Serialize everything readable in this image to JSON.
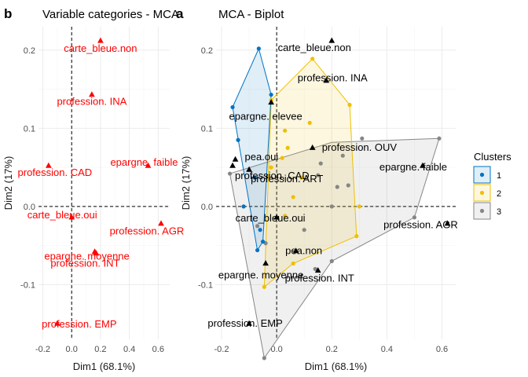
{
  "panel_tags": [
    "b",
    "a"
  ],
  "legend": {
    "title": "Clusters",
    "items": [
      {
        "label": "1",
        "color": "#0073c2"
      },
      {
        "label": "2",
        "color": "#efc000"
      },
      {
        "label": "3",
        "color": "#868686"
      }
    ]
  },
  "chart_data": [
    {
      "type": "scatter",
      "title": "Variable categories - MCA",
      "xlabel": "Dim1 (68.1%)",
      "ylabel": "Dim2 (17%)",
      "xlim": [
        -0.23,
        0.68
      ],
      "ylim": [
        -0.17,
        0.23
      ],
      "xticks": [
        -0.2,
        0.0,
        0.2,
        0.4,
        0.6
      ],
      "xtick_labels": [
        "-0.2",
        "0.0",
        "0.2",
        "0.4",
        "0.6"
      ],
      "yticks": [
        -0.1,
        0.0,
        0.1,
        0.2
      ],
      "ytick_labels": [
        "-0.1",
        "0.0",
        "0.1",
        "0.2"
      ],
      "grid": true,
      "marker": "triangle",
      "color": "#ff0000",
      "points": [
        {
          "label": "carte_bleue.non",
          "x": 0.2,
          "y": 0.212
        },
        {
          "label": "profession. INA",
          "x": 0.14,
          "y": 0.143
        },
        {
          "label": "epargne. faible",
          "x": 0.53,
          "y": 0.052
        },
        {
          "label": "profession. CAD",
          "x": -0.16,
          "y": 0.052
        },
        {
          "label": "carte_bleue.oui",
          "x": 0.0,
          "y": -0.014
        },
        {
          "label": "profession. AGR",
          "x": 0.62,
          "y": -0.022
        },
        {
          "label": "epargne. moyenne",
          "x": 0.16,
          "y": -0.058
        },
        {
          "label": "profession. INT",
          "x": 0.17,
          "y": -0.06
        },
        {
          "label": "profession. EMP",
          "x": -0.1,
          "y": -0.15
        }
      ]
    },
    {
      "type": "scatter",
      "title": "MCA - Biplot",
      "xlabel": "Dim1 (68.1%)",
      "ylabel": "Dim2 (17%)",
      "xlim": [
        -0.22,
        0.65
      ],
      "ylim": [
        -0.17,
        0.23
      ],
      "xticks": [
        -0.2,
        0.0,
        0.2,
        0.4,
        0.6
      ],
      "xtick_labels": [
        "-0.2",
        "0.0",
        "0.2",
        "0.4",
        "0.6"
      ],
      "yticks": [
        -0.1,
        0.0,
        0.1,
        0.2
      ],
      "ytick_labels": [
        "-0.1",
        "0.0",
        "0.1",
        "0.2"
      ],
      "grid": true,
      "legend_position": "right",
      "categories_points": [
        {
          "label": "carte_bleue.non",
          "x": 0.2,
          "y": 0.212
        },
        {
          "label": "profession. INA",
          "x": 0.18,
          "y": 0.161
        },
        {
          "label": "epargne. elevee",
          "x": -0.02,
          "y": 0.133
        },
        {
          "label": "pea.oui",
          "x": -0.15,
          "y": 0.06
        },
        {
          "label": "profession. OUV",
          "x": 0.13,
          "y": 0.075
        },
        {
          "label": "profession. ART",
          "x": -0.1,
          "y": 0.047
        },
        {
          "label": "profession. CAD",
          "x": -0.16,
          "y": 0.052
        },
        {
          "label": "epargne. faible",
          "x": 0.53,
          "y": 0.052
        },
        {
          "label": "carte_bleue.oui",
          "x": 0.0,
          "y": -0.014
        },
        {
          "label": "pea.non",
          "x": 0.07,
          "y": -0.057
        },
        {
          "label": "profession. AGR",
          "x": 0.62,
          "y": -0.022
        },
        {
          "label": "epargne. moyenne",
          "x": -0.04,
          "y": -0.073
        },
        {
          "label": "profession. INT",
          "x": 0.15,
          "y": -0.082
        },
        {
          "label": "profession. EMP",
          "x": -0.1,
          "y": -0.15
        }
      ],
      "clusters": [
        {
          "name": "1",
          "color": "#0073c2",
          "points": [
            {
              "x": -0.065,
              "y": 0.202
            },
            {
              "x": -0.02,
              "y": 0.143
            },
            {
              "x": -0.16,
              "y": 0.127
            },
            {
              "x": -0.14,
              "y": 0.085
            },
            {
              "x": -0.08,
              "y": 0.037
            },
            {
              "x": -0.12,
              "y": 0.0
            },
            {
              "x": -0.06,
              "y": -0.03
            },
            {
              "x": -0.05,
              "y": -0.045
            },
            {
              "x": -0.07,
              "y": -0.056
            }
          ]
        },
        {
          "name": "2",
          "color": "#efc000",
          "points": [
            {
              "x": 0.13,
              "y": 0.189
            },
            {
              "x": 0.265,
              "y": 0.13
            },
            {
              "x": -0.02,
              "y": 0.136
            },
            {
              "x": 0.12,
              "y": 0.107
            },
            {
              "x": 0.03,
              "y": 0.097
            },
            {
              "x": 0.04,
              "y": 0.075
            },
            {
              "x": 0.02,
              "y": 0.062
            },
            {
              "x": 0.09,
              "y": 0.037
            },
            {
              "x": -0.02,
              "y": 0.05
            },
            {
              "x": 0.06,
              "y": 0.012
            },
            {
              "x": 0.03,
              "y": -0.012
            },
            {
              "x": 0.3,
              "y": 0.0
            },
            {
              "x": 0.06,
              "y": -0.073
            },
            {
              "x": -0.045,
              "y": -0.103
            },
            {
              "x": 0.29,
              "y": -0.038
            }
          ]
        },
        {
          "name": "3",
          "color": "#868686",
          "points": [
            {
              "x": 0.59,
              "y": 0.087
            },
            {
              "x": 0.24,
              "y": 0.065
            },
            {
              "x": 0.31,
              "y": 0.087
            },
            {
              "x": 0.16,
              "y": 0.055
            },
            {
              "x": 0.26,
              "y": 0.027
            },
            {
              "x": 0.22,
              "y": 0.025
            },
            {
              "x": 0.15,
              "y": 0.04
            },
            {
              "x": -0.17,
              "y": 0.042
            },
            {
              "x": 0.2,
              "y": 0.0
            },
            {
              "x": 0.5,
              "y": -0.014
            },
            {
              "x": -0.07,
              "y": -0.025
            },
            {
              "x": 0.1,
              "y": -0.03
            },
            {
              "x": -0.04,
              "y": -0.047
            },
            {
              "x": 0.2,
              "y": -0.07
            },
            {
              "x": 0.14,
              "y": -0.08
            },
            {
              "x": -0.045,
              "y": -0.194
            }
          ],
          "hull": [
            {
              "x": 0.59,
              "y": 0.087
            },
            {
              "x": 0.5,
              "y": -0.014
            },
            {
              "x": 0.2,
              "y": -0.07
            },
            {
              "x": -0.045,
              "y": -0.194
            },
            {
              "x": -0.17,
              "y": 0.042
            },
            {
              "x": 0.2,
              "y": 0.082
            }
          ]
        }
      ],
      "cluster_hulls": {
        "1": [
          {
            "x": -0.065,
            "y": 0.202
          },
          {
            "x": -0.02,
            "y": 0.143
          },
          {
            "x": -0.05,
            "y": -0.045
          },
          {
            "x": -0.07,
            "y": -0.056
          },
          {
            "x": -0.16,
            "y": 0.127
          }
        ],
        "2": [
          {
            "x": 0.13,
            "y": 0.189
          },
          {
            "x": 0.265,
            "y": 0.13
          },
          {
            "x": 0.29,
            "y": -0.038
          },
          {
            "x": 0.06,
            "y": -0.073
          },
          {
            "x": -0.045,
            "y": -0.103
          },
          {
            "x": -0.02,
            "y": 0.136
          }
        ]
      }
    }
  ]
}
